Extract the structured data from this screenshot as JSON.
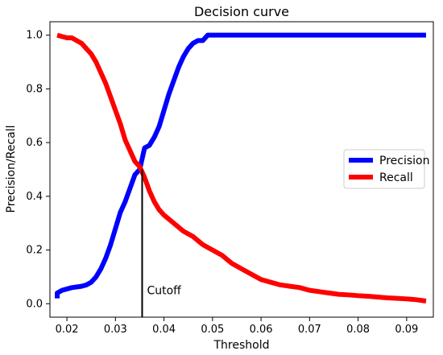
{
  "chart_data": {
    "type": "line",
    "title": "Decision curve",
    "xlabel": "Threshold",
    "ylabel": "Precision/Recall",
    "xlim": [
      0.0165,
      0.0955
    ],
    "ylim": [
      -0.05,
      1.05
    ],
    "grid": false,
    "legend_position": "center-right",
    "x_ticks": [
      0.02,
      0.03,
      0.04,
      0.05,
      0.06,
      0.07,
      0.08,
      0.09
    ],
    "x_tick_labels": [
      "0.02",
      "0.03",
      "0.04",
      "0.05",
      "0.06",
      "0.07",
      "0.08",
      "0.09"
    ],
    "y_ticks": [
      0.0,
      0.2,
      0.4,
      0.6,
      0.8,
      1.0
    ],
    "y_tick_labels": [
      "0.0",
      "0.2",
      "0.4",
      "0.6",
      "0.8",
      "1.0"
    ],
    "series": [
      {
        "name": "Precision",
        "color": "#0000ff",
        "x": [
          0.018,
          0.018,
          0.019,
          0.021,
          0.023,
          0.024,
          0.025,
          0.026,
          0.027,
          0.028,
          0.029,
          0.03,
          0.031,
          0.032,
          0.033,
          0.034,
          0.035,
          0.0355,
          0.036,
          0.037,
          0.038,
          0.039,
          0.04,
          0.041,
          0.042,
          0.043,
          0.044,
          0.045,
          0.046,
          0.047,
          0.048,
          0.049,
          0.05,
          0.06,
          0.07,
          0.08,
          0.094
        ],
        "y": [
          0.02,
          0.04,
          0.05,
          0.06,
          0.065,
          0.07,
          0.08,
          0.1,
          0.13,
          0.17,
          0.22,
          0.28,
          0.34,
          0.38,
          0.43,
          0.48,
          0.5,
          0.54,
          0.58,
          0.59,
          0.62,
          0.66,
          0.72,
          0.78,
          0.83,
          0.88,
          0.92,
          0.95,
          0.97,
          0.98,
          0.98,
          1.0,
          1.0,
          1.0,
          1.0,
          1.0,
          1.0
        ]
      },
      {
        "name": "Recall",
        "color": "#ff0000",
        "x": [
          0.018,
          0.019,
          0.02,
          0.021,
          0.022,
          0.023,
          0.024,
          0.025,
          0.026,
          0.027,
          0.028,
          0.029,
          0.03,
          0.031,
          0.032,
          0.033,
          0.034,
          0.035,
          0.0355,
          0.036,
          0.037,
          0.038,
          0.039,
          0.04,
          0.042,
          0.044,
          0.046,
          0.048,
          0.05,
          0.052,
          0.054,
          0.056,
          0.058,
          0.06,
          0.062,
          0.064,
          0.066,
          0.068,
          0.07,
          0.072,
          0.074,
          0.076,
          0.078,
          0.08,
          0.082,
          0.084,
          0.086,
          0.088,
          0.09,
          0.092,
          0.094
        ],
        "y": [
          1.0,
          0.995,
          0.99,
          0.99,
          0.98,
          0.97,
          0.95,
          0.93,
          0.9,
          0.86,
          0.82,
          0.77,
          0.72,
          0.67,
          0.61,
          0.57,
          0.53,
          0.51,
          0.49,
          0.47,
          0.42,
          0.38,
          0.35,
          0.33,
          0.3,
          0.27,
          0.25,
          0.22,
          0.2,
          0.18,
          0.15,
          0.13,
          0.11,
          0.09,
          0.08,
          0.07,
          0.065,
          0.06,
          0.05,
          0.045,
          0.04,
          0.035,
          0.033,
          0.03,
          0.028,
          0.025,
          0.022,
          0.02,
          0.018,
          0.015,
          0.01
        ]
      }
    ],
    "annotations": [
      {
        "type": "vline",
        "x": 0.0355,
        "y_range": [
          -0.05,
          0.5
        ],
        "label": "Cutoff",
        "color": "#000000"
      }
    ]
  }
}
